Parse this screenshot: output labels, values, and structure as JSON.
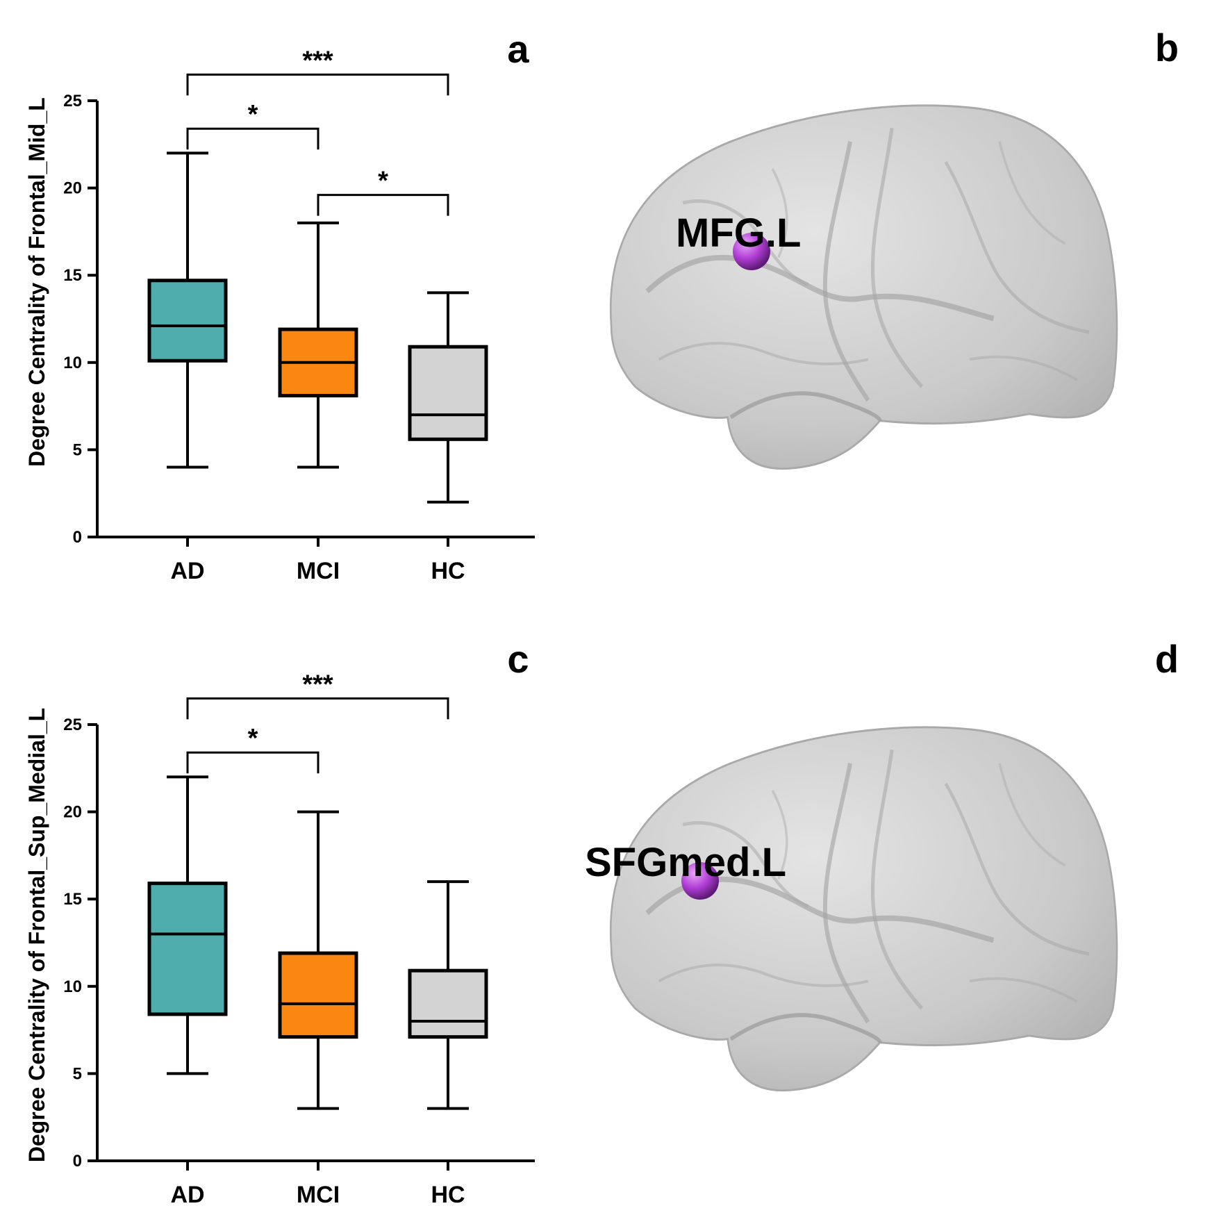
{
  "chart_data": [
    {
      "type": "box",
      "panel": "a",
      "ylabel": "Degree Centrality of Frontal_Mid_L",
      "ylim": [
        0,
        25
      ],
      "yticks": [
        0,
        5,
        10,
        15,
        20,
        25
      ],
      "categories": [
        "AD",
        "MCI",
        "HC"
      ],
      "boxes": [
        {
          "name": "AD",
          "min": 4,
          "q1": 10.1,
          "median": 12.1,
          "q3": 14.7,
          "max": 22,
          "color": "#4fadad"
        },
        {
          "name": "MCI",
          "min": 4,
          "q1": 8.1,
          "median": 10,
          "q3": 11.9,
          "max": 18,
          "color": "#fb8713"
        },
        {
          "name": "HC",
          "min": 2,
          "q1": 5.6,
          "median": 7,
          "q3": 10.9,
          "max": 14,
          "color": "#d3d3d3"
        }
      ],
      "significance": [
        {
          "from": 0,
          "to": 1,
          "label": "*",
          "level": 23.4
        },
        {
          "from": 0,
          "to": 2,
          "label": "***",
          "level": 26.5
        },
        {
          "from": 1,
          "to": 2,
          "label": "*",
          "level": 19.6
        }
      ]
    },
    {
      "type": "box",
      "panel": "c",
      "ylabel": "Degree Centrality of Frontal_Sup_Medial_L",
      "ylim": [
        0,
        25
      ],
      "yticks": [
        0,
        5,
        10,
        15,
        20,
        25
      ],
      "categories": [
        "AD",
        "MCI",
        "HC"
      ],
      "boxes": [
        {
          "name": "AD",
          "min": 5,
          "q1": 8.4,
          "median": 13,
          "q3": 15.9,
          "max": 22,
          "color": "#4fadad"
        },
        {
          "name": "MCI",
          "min": 3,
          "q1": 7.1,
          "median": 9,
          "q3": 11.9,
          "max": 20,
          "color": "#fb8713"
        },
        {
          "name": "HC",
          "min": 3,
          "q1": 7.1,
          "median": 8,
          "q3": 10.9,
          "max": 16,
          "color": "#d3d3d3"
        }
      ],
      "significance": [
        {
          "from": 0,
          "to": 1,
          "label": "*",
          "level": 23.4
        },
        {
          "from": 0,
          "to": 2,
          "label": "***",
          "level": 26.5
        }
      ]
    }
  ],
  "panels": {
    "a": "a",
    "b": "b",
    "c": "c",
    "d": "d"
  },
  "brain_b": {
    "region_label": "MFG.L",
    "marker_color": "#b23fd6"
  },
  "brain_d": {
    "region_label": "SFGmed.L",
    "marker_color": "#b23fd6"
  }
}
